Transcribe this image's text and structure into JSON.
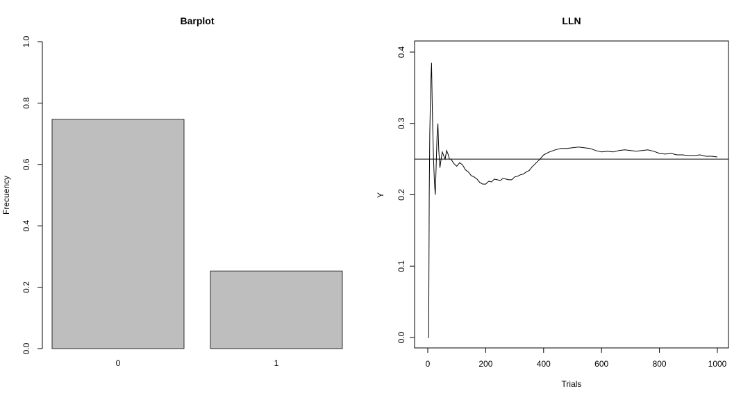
{
  "chart_data": [
    {
      "type": "bar",
      "title": "Barplot",
      "xlabel": "",
      "ylabel": "Frecuency",
      "categories": [
        "0",
        "1"
      ],
      "values": [
        0.747,
        0.253
      ],
      "ylim": [
        0,
        1
      ],
      "yticks": [
        "0.0",
        "0.2",
        "0.4",
        "0.6",
        "0.8",
        "1.0"
      ],
      "bar_color": "#bebebe",
      "grid": false
    },
    {
      "type": "line",
      "title": "LLN",
      "xlabel": "Trials",
      "ylabel": "Y",
      "xlim": [
        1,
        1000
      ],
      "ylim": [
        0,
        0.4
      ],
      "xticks": [
        "0",
        "200",
        "400",
        "600",
        "800",
        "1000"
      ],
      "yticks": [
        "0.0",
        "0.1",
        "0.2",
        "0.3",
        "0.4"
      ],
      "reference_line": 0.25,
      "series": [
        {
          "x": [
            1,
            3,
            5,
            7,
            9,
            11,
            13,
            15,
            17,
            20,
            23,
            26,
            29,
            32,
            35,
            38,
            42,
            46,
            50,
            55,
            60,
            65,
            70,
            75,
            80,
            90,
            100,
            110,
            120,
            130,
            140,
            150,
            160,
            170,
            180,
            190,
            200,
            210,
            220,
            230,
            240,
            250,
            260,
            270,
            280,
            290,
            300,
            310,
            320,
            330,
            340,
            350,
            360,
            370,
            380,
            390,
            400,
            420,
            440,
            460,
            480,
            500,
            520,
            540,
            560,
            580,
            600,
            620,
            640,
            660,
            680,
            700,
            720,
            740,
            760,
            780,
            800,
            820,
            840,
            860,
            880,
            900,
            920,
            940,
            960,
            980,
            1000
          ],
          "y": [
            0,
            0,
            0.2,
            0.286,
            0.333,
            0.364,
            0.385,
            0.333,
            0.294,
            0.25,
            0.217,
            0.2,
            0.241,
            0.281,
            0.3,
            0.263,
            0.238,
            0.25,
            0.26,
            0.255,
            0.25,
            0.262,
            0.257,
            0.25,
            0.25,
            0.244,
            0.24,
            0.245,
            0.242,
            0.235,
            0.232,
            0.227,
            0.225,
            0.222,
            0.217,
            0.215,
            0.215,
            0.219,
            0.218,
            0.222,
            0.221,
            0.22,
            0.223,
            0.222,
            0.221,
            0.221,
            0.225,
            0.226,
            0.228,
            0.229,
            0.232,
            0.234,
            0.239,
            0.243,
            0.247,
            0.251,
            0.256,
            0.26,
            0.263,
            0.265,
            0.265,
            0.266,
            0.267,
            0.266,
            0.265,
            0.262,
            0.26,
            0.261,
            0.26,
            0.262,
            0.263,
            0.262,
            0.261,
            0.262,
            0.263,
            0.261,
            0.258,
            0.257,
            0.258,
            0.256,
            0.256,
            0.255,
            0.255,
            0.256,
            0.254,
            0.254,
            0.253
          ]
        }
      ],
      "grid": false
    }
  ]
}
